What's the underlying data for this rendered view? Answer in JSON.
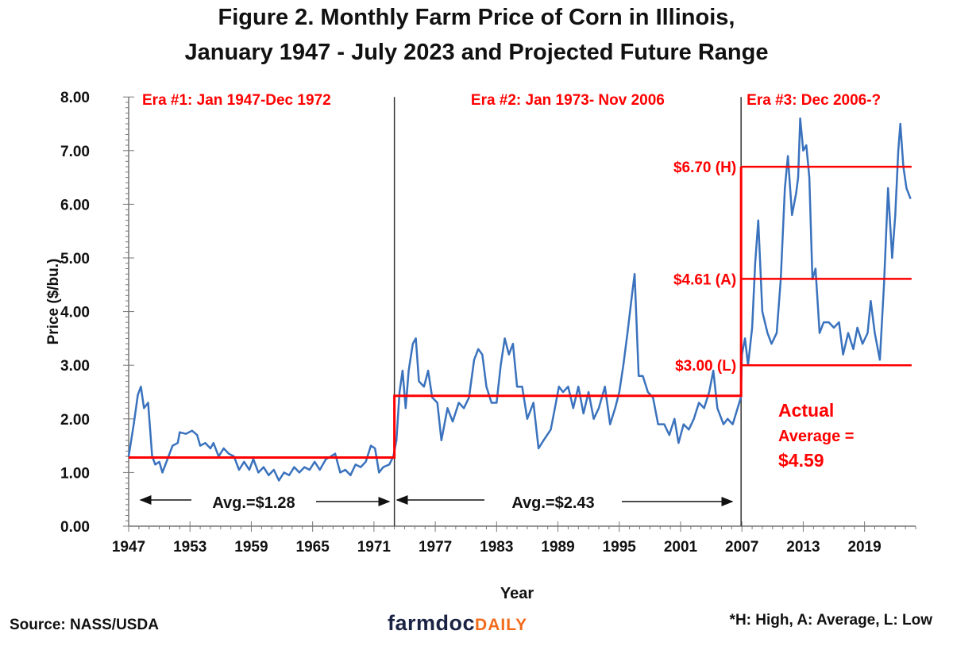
{
  "chart_data": {
    "type": "line",
    "title": "Figure 2. Monthly Farm Price of Corn in Illinois,",
    "subtitle": "January 1947 - July 2023 and Projected Future Range",
    "xlabel": "Year",
    "ylabel": "Price ($/bu.)",
    "xlim": [
      1947,
      2024
    ],
    "ylim": [
      0,
      8
    ],
    "x_ticks": [
      "1947",
      "1953",
      "1959",
      "1965",
      "1971",
      "1977",
      "1983",
      "1989",
      "1995",
      "2001",
      "2007",
      "2013",
      "2019"
    ],
    "y_ticks": [
      "0.00",
      "1.00",
      "2.00",
      "3.00",
      "4.00",
      "5.00",
      "6.00",
      "7.00",
      "8.00"
    ],
    "grid": false,
    "colors": {
      "series": "#3a72bd",
      "reference": "#ff0000",
      "era_divider": "#333333",
      "annotation": "#ff0000",
      "text": "#111111"
    },
    "series": [
      {
        "points": [
          [
            1947.0,
            1.3
          ],
          [
            1947.5,
            1.9
          ],
          [
            1947.9,
            2.45
          ],
          [
            1948.2,
            2.6
          ],
          [
            1948.5,
            2.2
          ],
          [
            1948.9,
            2.3
          ],
          [
            1949.3,
            1.3
          ],
          [
            1949.6,
            1.15
          ],
          [
            1950.0,
            1.2
          ],
          [
            1950.3,
            1.0
          ],
          [
            1950.8,
            1.25
          ],
          [
            1951.3,
            1.5
          ],
          [
            1951.8,
            1.55
          ],
          [
            1952.0,
            1.75
          ],
          [
            1952.6,
            1.72
          ],
          [
            1953.2,
            1.78
          ],
          [
            1953.7,
            1.7
          ],
          [
            1954.0,
            1.5
          ],
          [
            1954.5,
            1.55
          ],
          [
            1955.0,
            1.45
          ],
          [
            1955.3,
            1.55
          ],
          [
            1955.8,
            1.3
          ],
          [
            1956.3,
            1.45
          ],
          [
            1956.8,
            1.35
          ],
          [
            1957.3,
            1.3
          ],
          [
            1957.8,
            1.05
          ],
          [
            1958.3,
            1.2
          ],
          [
            1958.8,
            1.05
          ],
          [
            1959.2,
            1.25
          ],
          [
            1959.7,
            1.0
          ],
          [
            1960.2,
            1.1
          ],
          [
            1960.7,
            0.95
          ],
          [
            1961.2,
            1.05
          ],
          [
            1961.7,
            0.85
          ],
          [
            1962.2,
            1.0
          ],
          [
            1962.7,
            0.95
          ],
          [
            1963.2,
            1.1
          ],
          [
            1963.7,
            1.0
          ],
          [
            1964.2,
            1.1
          ],
          [
            1964.7,
            1.05
          ],
          [
            1965.2,
            1.2
          ],
          [
            1965.7,
            1.05
          ],
          [
            1966.3,
            1.25
          ],
          [
            1966.8,
            1.3
          ],
          [
            1967.2,
            1.35
          ],
          [
            1967.7,
            1.0
          ],
          [
            1968.2,
            1.05
          ],
          [
            1968.7,
            0.95
          ],
          [
            1969.2,
            1.15
          ],
          [
            1969.7,
            1.1
          ],
          [
            1970.2,
            1.2
          ],
          [
            1970.7,
            1.5
          ],
          [
            1971.1,
            1.45
          ],
          [
            1971.5,
            1.0
          ],
          [
            1971.9,
            1.1
          ],
          [
            1972.5,
            1.15
          ],
          [
            1972.9,
            1.3
          ],
          [
            1973.2,
            1.6
          ],
          [
            1973.5,
            2.5
          ],
          [
            1973.8,
            2.9
          ],
          [
            1974.1,
            2.2
          ],
          [
            1974.4,
            2.9
          ],
          [
            1974.8,
            3.4
          ],
          [
            1975.1,
            3.5
          ],
          [
            1975.4,
            2.7
          ],
          [
            1975.9,
            2.6
          ],
          [
            1976.3,
            2.9
          ],
          [
            1976.7,
            2.4
          ],
          [
            1977.2,
            2.3
          ],
          [
            1977.6,
            1.6
          ],
          [
            1978.2,
            2.2
          ],
          [
            1978.7,
            1.95
          ],
          [
            1979.3,
            2.3
          ],
          [
            1979.8,
            2.2
          ],
          [
            1980.3,
            2.4
          ],
          [
            1980.8,
            3.1
          ],
          [
            1981.2,
            3.3
          ],
          [
            1981.6,
            3.2
          ],
          [
            1982.0,
            2.6
          ],
          [
            1982.5,
            2.3
          ],
          [
            1983.0,
            2.3
          ],
          [
            1983.4,
            3.0
          ],
          [
            1983.8,
            3.5
          ],
          [
            1984.2,
            3.2
          ],
          [
            1984.6,
            3.4
          ],
          [
            1985.0,
            2.6
          ],
          [
            1985.5,
            2.6
          ],
          [
            1986.0,
            2.0
          ],
          [
            1986.6,
            2.3
          ],
          [
            1987.1,
            1.45
          ],
          [
            1987.6,
            1.6
          ],
          [
            1988.3,
            1.8
          ],
          [
            1988.7,
            2.2
          ],
          [
            1989.1,
            2.6
          ],
          [
            1989.5,
            2.5
          ],
          [
            1990.0,
            2.6
          ],
          [
            1990.5,
            2.2
          ],
          [
            1991.0,
            2.6
          ],
          [
            1991.5,
            2.1
          ],
          [
            1992.0,
            2.5
          ],
          [
            1992.5,
            2.0
          ],
          [
            1993.0,
            2.2
          ],
          [
            1993.6,
            2.6
          ],
          [
            1994.1,
            1.9
          ],
          [
            1994.6,
            2.2
          ],
          [
            1995.0,
            2.5
          ],
          [
            1995.4,
            3.0
          ],
          [
            1995.8,
            3.6
          ],
          [
            1996.3,
            4.4
          ],
          [
            1996.5,
            4.7
          ],
          [
            1996.9,
            2.8
          ],
          [
            1997.3,
            2.8
          ],
          [
            1997.8,
            2.5
          ],
          [
            1998.3,
            2.4
          ],
          [
            1998.8,
            1.9
          ],
          [
            1999.4,
            1.9
          ],
          [
            1999.9,
            1.7
          ],
          [
            2000.4,
            2.0
          ],
          [
            2000.8,
            1.55
          ],
          [
            2001.3,
            1.9
          ],
          [
            2001.8,
            1.8
          ],
          [
            2002.3,
            2.0
          ],
          [
            2002.8,
            2.3
          ],
          [
            2003.3,
            2.2
          ],
          [
            2003.8,
            2.5
          ],
          [
            2004.2,
            2.9
          ],
          [
            2004.6,
            2.2
          ],
          [
            2005.2,
            1.9
          ],
          [
            2005.6,
            2.0
          ],
          [
            2006.1,
            1.9
          ],
          [
            2006.9,
            2.4
          ],
          [
            2007.0,
            3.2
          ],
          [
            2007.3,
            3.5
          ],
          [
            2007.6,
            3.0
          ],
          [
            2008.0,
            3.7
          ],
          [
            2008.3,
            4.9
          ],
          [
            2008.6,
            5.7
          ],
          [
            2009.0,
            4.0
          ],
          [
            2009.5,
            3.6
          ],
          [
            2009.9,
            3.4
          ],
          [
            2010.4,
            3.6
          ],
          [
            2010.8,
            4.6
          ],
          [
            2011.2,
            6.3
          ],
          [
            2011.5,
            6.9
          ],
          [
            2011.9,
            5.8
          ],
          [
            2012.3,
            6.2
          ],
          [
            2012.5,
            6.5
          ],
          [
            2012.7,
            7.6
          ],
          [
            2013.0,
            7.0
          ],
          [
            2013.3,
            7.1
          ],
          [
            2013.6,
            6.5
          ],
          [
            2013.9,
            4.6
          ],
          [
            2014.2,
            4.8
          ],
          [
            2014.6,
            3.6
          ],
          [
            2015.0,
            3.8
          ],
          [
            2015.5,
            3.8
          ],
          [
            2016.0,
            3.7
          ],
          [
            2016.5,
            3.8
          ],
          [
            2016.9,
            3.2
          ],
          [
            2017.4,
            3.6
          ],
          [
            2017.9,
            3.3
          ],
          [
            2018.3,
            3.7
          ],
          [
            2018.8,
            3.4
          ],
          [
            2019.3,
            3.6
          ],
          [
            2019.6,
            4.2
          ],
          [
            2020.0,
            3.6
          ],
          [
            2020.5,
            3.1
          ],
          [
            2020.9,
            4.5
          ],
          [
            2021.3,
            6.3
          ],
          [
            2021.7,
            5.0
          ],
          [
            2022.0,
            5.8
          ],
          [
            2022.3,
            7.0
          ],
          [
            2022.5,
            7.5
          ],
          [
            2022.8,
            6.7
          ],
          [
            2023.1,
            6.3
          ],
          [
            2023.5,
            6.1
          ]
        ]
      }
    ],
    "era_dividers": [
      1973.0,
      2006.92
    ],
    "averages": [
      {
        "from": 1947.0,
        "to": 1973.0,
        "value": 1.28,
        "label": "Avg.=$1.28"
      },
      {
        "from": 1973.0,
        "to": 2006.92,
        "value": 2.43,
        "label": "Avg.=$2.43"
      }
    ],
    "projected_range": [
      {
        "value": 6.7,
        "label": "$6.70 (H)"
      },
      {
        "value": 4.61,
        "label": "$4.61 (A)"
      },
      {
        "value": 3.0,
        "label": "$3.00 (L)"
      }
    ],
    "era_labels": [
      "Era #1: Jan 1947-Dec 1972",
      "Era #2: Jan 1973- Nov 2006",
      "Era #3: Dec 2006-?"
    ],
    "actual_average": {
      "line1": "Actual",
      "line2": "Average =",
      "line3": "$4.59"
    }
  },
  "footer": {
    "source": "Source: NASS/USDA",
    "note": "*H: High, A: Average, L: Low",
    "logo_part1": "farmdoc",
    "logo_part2": "DAILY"
  }
}
